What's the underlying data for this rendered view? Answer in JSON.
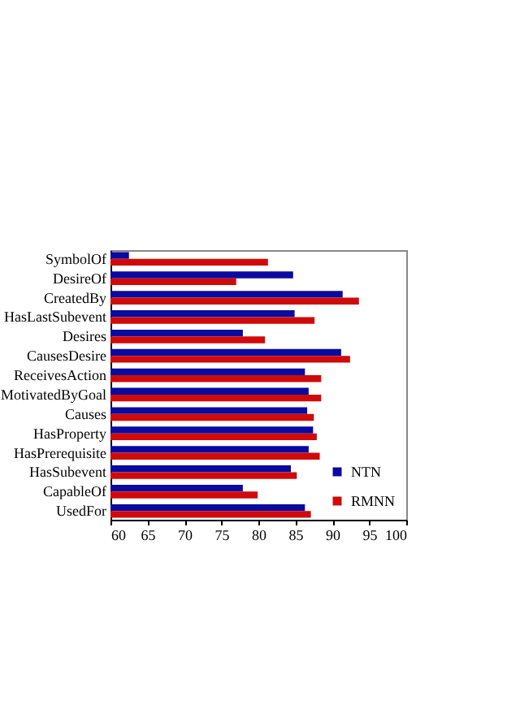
{
  "chart_data": {
    "type": "bar",
    "orientation": "horizontal",
    "categories": [
      "SymbolOf",
      "DesireOf",
      "CreatedBy",
      "HasLastSubevent",
      "Desires",
      "CausesDesire",
      "ReceivesAction",
      "MotivatedByGoal",
      "Causes",
      "HasProperty",
      "HasPrerequisite",
      "HasSubevent",
      "CapableOf",
      "UsedFor"
    ],
    "series": [
      {
        "name": "NTN",
        "color": "#0a0aa0",
        "values": [
          62.5,
          84.7,
          91.4,
          84.9,
          77.9,
          91.2,
          86.3,
          86.8,
          86.6,
          87.4,
          86.8,
          84.4,
          77.9,
          86.3
        ]
      },
      {
        "name": "RMNN",
        "color": "#d00a0a",
        "values": [
          81.3,
          77.0,
          93.6,
          87.6,
          80.9,
          92.4,
          88.5,
          88.5,
          87.5,
          87.9,
          88.3,
          85.2,
          79.9,
          87.1
        ]
      }
    ],
    "xlim": [
      60,
      100
    ],
    "xticks": [
      60,
      65,
      70,
      75,
      80,
      85,
      90,
      95,
      100
    ],
    "grid": false,
    "legend": "bottom right"
  }
}
